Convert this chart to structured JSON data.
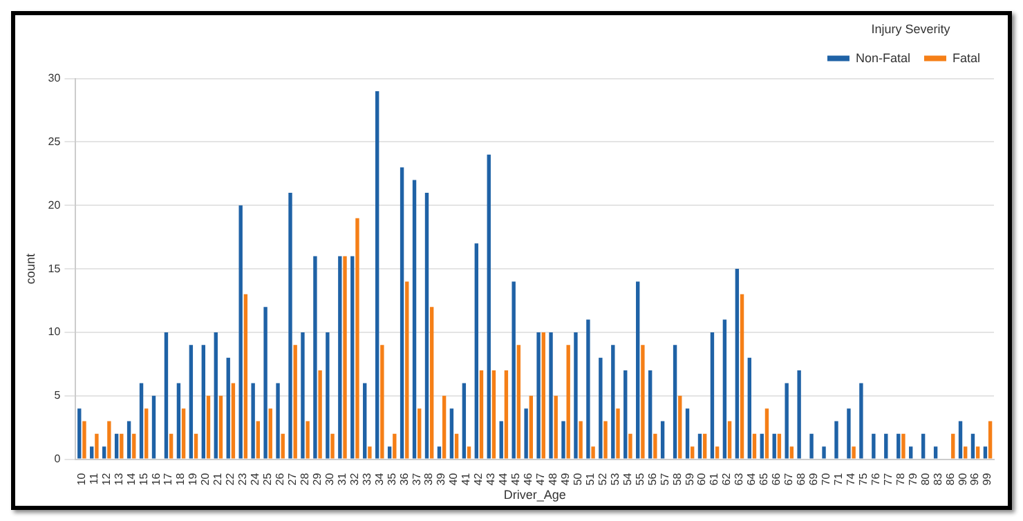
{
  "chart_data": {
    "type": "bar",
    "xlabel": "Driver_Age",
    "ylabel": "count",
    "legend_title": "Injury Severity",
    "categories": [
      "10",
      "11",
      "12",
      "13",
      "14",
      "15",
      "16",
      "17",
      "18",
      "19",
      "20",
      "21",
      "22",
      "23",
      "24",
      "25",
      "26",
      "27",
      "28",
      "29",
      "30",
      "31",
      "32",
      "33",
      "34",
      "35",
      "36",
      "37",
      "38",
      "39",
      "40",
      "41",
      "42",
      "43",
      "44",
      "45",
      "46",
      "47",
      "48",
      "49",
      "50",
      "51",
      "52",
      "53",
      "54",
      "55",
      "56",
      "57",
      "58",
      "59",
      "60",
      "61",
      "62",
      "63",
      "64",
      "65",
      "66",
      "67",
      "68",
      "69",
      "70",
      "71",
      "74",
      "75",
      "76",
      "77",
      "78",
      "79",
      "80",
      "83",
      "86",
      "90",
      "96",
      "99"
    ],
    "series": [
      {
        "name": "Non-Fatal",
        "color": "#1f62a6",
        "values": [
          4,
          1,
          1,
          2,
          3,
          6,
          5,
          10,
          6,
          9,
          9,
          10,
          8,
          20,
          6,
          12,
          6,
          21,
          10,
          16,
          10,
          16,
          16,
          6,
          29,
          1,
          23,
          22,
          21,
          1,
          4,
          6,
          17,
          24,
          3,
          14,
          4,
          10,
          10,
          3,
          10,
          11,
          8,
          9,
          7,
          14,
          7,
          3,
          9,
          4,
          2,
          10,
          11,
          15,
          8,
          2,
          2,
          6,
          7,
          2,
          1,
          3,
          4,
          6,
          2,
          2,
          2,
          1,
          2,
          1,
          0,
          3,
          2,
          1
        ]
      },
      {
        "name": "Fatal",
        "color": "#f57f17",
        "values": [
          3,
          2,
          3,
          2,
          2,
          4,
          0,
          2,
          4,
          2,
          5,
          5,
          6,
          13,
          3,
          4,
          2,
          9,
          3,
          7,
          2,
          16,
          19,
          1,
          9,
          2,
          14,
          4,
          12,
          5,
          2,
          1,
          7,
          7,
          7,
          9,
          5,
          10,
          5,
          9,
          3,
          1,
          3,
          4,
          2,
          9,
          2,
          0,
          5,
          1,
          2,
          1,
          3,
          13,
          2,
          4,
          2,
          1,
          0,
          0,
          0,
          0,
          1,
          0,
          0,
          0,
          2,
          0,
          0,
          0,
          2,
          1,
          1,
          3
        ]
      }
    ],
    "ylim": [
      0,
      30
    ],
    "yticks": [
      0,
      5,
      10,
      15,
      20,
      25,
      30
    ],
    "grid": "y",
    "legend": "top right"
  }
}
